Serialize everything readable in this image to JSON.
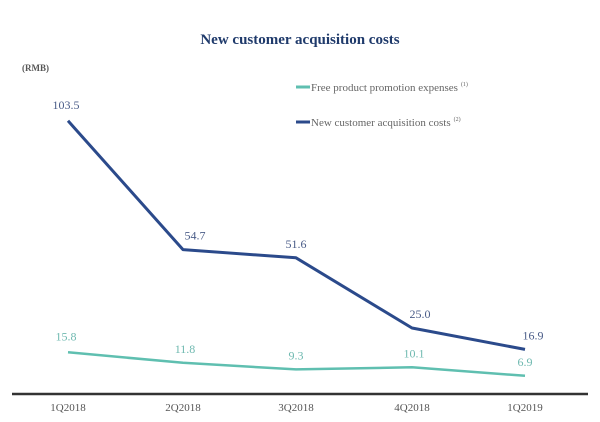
{
  "chart_data": {
    "type": "line",
    "title": "New customer acquisition costs",
    "ylabel": "(RMB)",
    "xlabel": "",
    "categories": [
      "1Q2018",
      "2Q2018",
      "3Q2018",
      "4Q2018",
      "1Q2019"
    ],
    "ylim": [
      0,
      110
    ],
    "grid": false,
    "legend_position": "top-right",
    "series": [
      {
        "name": "Free product promotion expenses",
        "footnote": "(1)",
        "color": "#5fbfb0",
        "values": [
          15.8,
          11.8,
          9.3,
          10.1,
          6.9
        ],
        "labels": [
          "15.8",
          "11.8",
          "9.3",
          "10.1",
          "6.9"
        ]
      },
      {
        "name": "New customer acquisition costs",
        "footnote": "(2)",
        "color": "#2b4a8b",
        "values": [
          103.5,
          54.7,
          51.6,
          25.0,
          16.9
        ],
        "labels": [
          "103.5",
          "54.7",
          "51.6",
          "25.0",
          "16.9"
        ]
      }
    ]
  }
}
